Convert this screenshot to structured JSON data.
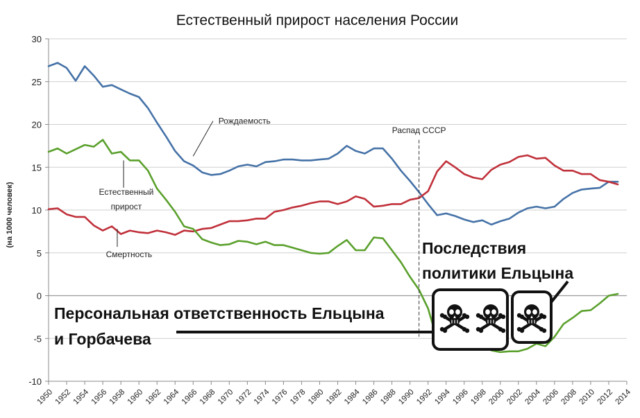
{
  "chart_data": {
    "type": "line",
    "title": "Естественный прирост населения России",
    "xlabel": "",
    "ylabel": "(на 1000 человек)",
    "xlim": [
      1950,
      2014
    ],
    "ylim": [
      -10,
      30
    ],
    "y_ticks": [
      "30",
      "25",
      "20",
      "15",
      "10",
      "5",
      "0",
      "-5",
      "-10"
    ],
    "x_ticks": [
      "1950",
      "1952",
      "1954",
      "1956",
      "1958",
      "1960",
      "1962",
      "1964",
      "1966",
      "1968",
      "1970",
      "1972",
      "1974",
      "1976",
      "1978",
      "1980",
      "1982",
      "1984",
      "1986",
      "1988",
      "1990",
      "1992",
      "1994",
      "1996",
      "1998",
      "2000",
      "2002",
      "2004",
      "2006",
      "2008",
      "2010",
      "2012",
      "2014"
    ],
    "grid": true,
    "x": [
      1950,
      1951,
      1952,
      1953,
      1954,
      1955,
      1956,
      1957,
      1958,
      1959,
      1960,
      1961,
      1962,
      1963,
      1964,
      1965,
      1966,
      1967,
      1968,
      1969,
      1970,
      1971,
      1972,
      1973,
      1974,
      1975,
      1976,
      1977,
      1978,
      1979,
      1980,
      1981,
      1982,
      1983,
      1984,
      1985,
      1986,
      1987,
      1988,
      1989,
      1990,
      1991,
      1992,
      1993,
      1994,
      1995,
      1996,
      1997,
      1998,
      1999,
      2000,
      2001,
      2002,
      2003,
      2004,
      2005,
      2006,
      2007,
      2008,
      2009,
      2010,
      2011,
      2012,
      2013
    ],
    "series": [
      {
        "name": "Рождаемость",
        "color": "#4572a7",
        "values": [
          26.8,
          27.2,
          26.6,
          25.1,
          26.8,
          25.7,
          24.4,
          24.6,
          24.1,
          23.6,
          23.2,
          21.9,
          20.2,
          18.6,
          16.9,
          15.7,
          15.2,
          14.4,
          14.1,
          14.2,
          14.6,
          15.1,
          15.3,
          15.1,
          15.6,
          15.7,
          15.9,
          15.9,
          15.8,
          15.8,
          15.9,
          16.0,
          16.6,
          17.5,
          16.9,
          16.6,
          17.2,
          17.2,
          16.0,
          14.6,
          13.4,
          12.1,
          10.7,
          9.4,
          9.6,
          9.3,
          8.9,
          8.6,
          8.8,
          8.3,
          8.7,
          9.0,
          9.7,
          10.2,
          10.4,
          10.2,
          10.4,
          11.3,
          12.0,
          12.4,
          12.5,
          12.6,
          13.3,
          13.3
        ]
      },
      {
        "name": "Смертность",
        "color": "#c0303a",
        "values": [
          10.1,
          10.2,
          9.5,
          9.2,
          9.2,
          8.2,
          7.6,
          8.1,
          7.2,
          7.6,
          7.4,
          7.3,
          7.6,
          7.4,
          7.1,
          7.6,
          7.5,
          7.8,
          7.9,
          8.3,
          8.7,
          8.7,
          8.8,
          9.0,
          9.0,
          9.8,
          10.0,
          10.3,
          10.5,
          10.8,
          11.0,
          11.0,
          10.7,
          11.0,
          11.6,
          11.3,
          10.4,
          10.5,
          10.7,
          10.7,
          11.2,
          11.4,
          12.2,
          14.5,
          15.7,
          15.0,
          14.2,
          13.8,
          13.6,
          14.7,
          15.3,
          15.6,
          16.2,
          16.4,
          16.0,
          16.1,
          15.2,
          14.6,
          14.6,
          14.2,
          14.2,
          13.5,
          13.3,
          13.0
        ]
      },
      {
        "name": "Естественный прирост",
        "color": "#5aa02c",
        "values": [
          16.8,
          17.2,
          16.6,
          17.1,
          17.6,
          17.4,
          18.2,
          16.6,
          16.8,
          15.8,
          15.8,
          14.6,
          12.5,
          11.2,
          9.8,
          8.1,
          7.8,
          6.6,
          6.2,
          5.9,
          6.0,
          6.4,
          6.3,
          6.0,
          6.3,
          5.9,
          5.9,
          5.6,
          5.3,
          5.0,
          4.9,
          5.0,
          5.8,
          6.5,
          5.3,
          5.3,
          6.8,
          6.7,
          5.3,
          3.9,
          2.2,
          0.7,
          -1.5,
          -5.1,
          -6.0,
          -5.7,
          -5.3,
          -5.2,
          -4.8,
          -6.4,
          -6.6,
          -6.5,
          -6.5,
          -6.2,
          -5.6,
          -5.9,
          -4.8,
          -3.3,
          -2.6,
          -1.8,
          -1.7,
          -0.9,
          0.0,
          0.2
        ]
      }
    ],
    "annotations": {
      "births": "Рождаемость",
      "deaths": "Смертность",
      "natural_line1": "Естественный",
      "natural_line2": "прирост",
      "ussr": "Распад СССР",
      "ussr_year": 1991,
      "consequences_line1": "Последствия",
      "consequences_line2": "политики Ельцына",
      "responsibility_line1": "Персональная ответственность Ельцына",
      "responsibility_line2": "и Горбачева",
      "skull_icons": [
        "skull-crossbones-icon",
        "skull-crossbones-icon",
        "skull-crossbones-icon"
      ]
    }
  }
}
